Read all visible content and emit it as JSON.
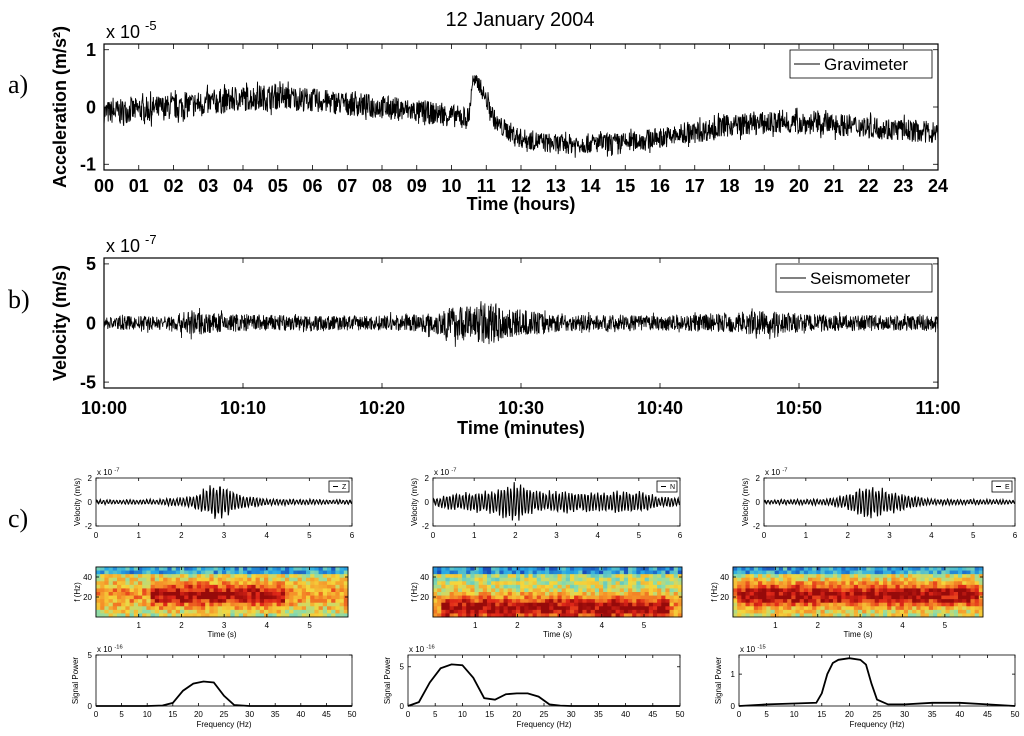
{
  "title": "12 January 2004",
  "panel_labels": [
    "a)",
    "b)",
    "c)"
  ],
  "chart_data": [
    {
      "type": "line",
      "id": "a",
      "ylabel": "Acceleration (m/s²)",
      "xlabel": "Time (hours)",
      "exponent_base": "x 10",
      "exponent": "-5",
      "legend": "Gravimeter",
      "legend_position": "top-right",
      "xlim": [
        0,
        24
      ],
      "ylim": [
        -1.1,
        1.1
      ],
      "yticks": [
        -1,
        0,
        1
      ],
      "ytick_labels": [
        "-1",
        "0",
        "1"
      ],
      "xticks": [
        0,
        1,
        2,
        3,
        4,
        5,
        6,
        7,
        8,
        9,
        10,
        11,
        12,
        13,
        14,
        15,
        16,
        17,
        18,
        19,
        20,
        21,
        22,
        23,
        24
      ],
      "xtick_labels": [
        "00",
        "01",
        "02",
        "03",
        "04",
        "05",
        "06",
        "07",
        "08",
        "09",
        "10",
        "11",
        "12",
        "13",
        "14",
        "15",
        "16",
        "17",
        "18",
        "19",
        "20",
        "21",
        "22",
        "23",
        "24"
      ],
      "envelope_x": [
        0,
        2,
        4,
        5,
        6,
        8,
        10,
        10.5,
        10.6,
        10.8,
        11.3,
        12,
        13,
        15,
        17,
        18,
        19,
        20,
        21,
        22,
        24
      ],
      "envelope_center": [
        -0.1,
        0.0,
        0.15,
        0.18,
        0.12,
        0.0,
        -0.15,
        -0.2,
        0.45,
        0.4,
        -0.3,
        -0.55,
        -0.65,
        -0.62,
        -0.45,
        -0.32,
        -0.28,
        -0.28,
        -0.3,
        -0.35,
        -0.45
      ],
      "envelope_amplitude": [
        0.3,
        0.32,
        0.32,
        0.32,
        0.3,
        0.3,
        0.28,
        0.28,
        0.2,
        0.2,
        0.25,
        0.25,
        0.25,
        0.25,
        0.27,
        0.28,
        0.28,
        0.28,
        0.28,
        0.28,
        0.28
      ]
    },
    {
      "type": "line",
      "id": "b",
      "ylabel": "Velocity (m/s)",
      "xlabel": "Time (minutes)",
      "exponent_base": "x 10",
      "exponent": "-7",
      "legend": "Seismometer",
      "legend_position": "top-right",
      "xlim": [
        0,
        60
      ],
      "ylim": [
        -5.5,
        5.5
      ],
      "yticks": [
        -5,
        0,
        5
      ],
      "ytick_labels": [
        "-5",
        "0",
        "5"
      ],
      "xticks": [
        0,
        10,
        20,
        30,
        40,
        50,
        60
      ],
      "xtick_labels": [
        "10:00",
        "10:10",
        "10:20",
        "10:30",
        "10:40",
        "10:50",
        "11:00"
      ],
      "envelope_x": [
        0,
        5,
        6,
        8,
        12,
        20,
        23,
        25,
        28,
        30,
        33,
        40,
        45,
        47,
        52,
        60
      ],
      "envelope_amplitude": [
        0.8,
        0.9,
        1.6,
        1.2,
        1.0,
        0.9,
        1.1,
        2.0,
        2.5,
        1.6,
        1.0,
        0.9,
        1.2,
        1.5,
        1.0,
        0.9
      ]
    },
    {
      "type": "line",
      "id": "c-velocity-Z",
      "ylabel": "Velocity (m/s)",
      "xlabel": "",
      "exponent_base": "x 10",
      "exponent": "-7",
      "legend": "Z",
      "xlim": [
        0,
        6
      ],
      "ylim": [
        -2,
        2
      ],
      "yticks": [
        -2,
        0,
        2
      ],
      "ytick_labels": [
        "-2",
        "0",
        "2"
      ],
      "xticks": [
        0,
        1,
        2,
        3,
        4,
        5,
        6
      ],
      "xtick_labels": [
        "0",
        "1",
        "2",
        "3",
        "4",
        "5",
        "6"
      ],
      "envelope_x": [
        0,
        1.5,
        2.2,
        2.8,
        3.4,
        4.0,
        6
      ],
      "envelope_amplitude": [
        0.2,
        0.25,
        0.5,
        1.8,
        0.7,
        0.3,
        0.2
      ]
    },
    {
      "type": "line",
      "id": "c-velocity-N",
      "ylabel": "Velocity (m/s)",
      "xlabel": "",
      "exponent_base": "x 10",
      "exponent": "-7",
      "legend": "N",
      "xlim": [
        0,
        6
      ],
      "ylim": [
        -2,
        2
      ],
      "yticks": [
        -2,
        0,
        2
      ],
      "ytick_labels": [
        "-2",
        "0",
        "2"
      ],
      "xticks": [
        0,
        1,
        2,
        3,
        4,
        5,
        6
      ],
      "xtick_labels": [
        "0",
        "1",
        "2",
        "3",
        "4",
        "5",
        "6"
      ],
      "envelope_x": [
        0,
        0.5,
        1.0,
        1.5,
        2.0,
        2.5,
        3.0,
        4.0,
        5.0,
        5.5,
        6
      ],
      "envelope_amplitude": [
        0.3,
        0.8,
        0.9,
        1.2,
        1.7,
        1.0,
        1.0,
        0.9,
        1.1,
        0.5,
        0.4
      ]
    },
    {
      "type": "line",
      "id": "c-velocity-E",
      "ylabel": "Velocity (m/s)",
      "xlabel": "",
      "exponent_base": "x 10",
      "exponent": "-7",
      "legend": "E",
      "xlim": [
        0,
        6
      ],
      "ylim": [
        -2,
        2
      ],
      "yticks": [
        -2,
        0,
        2
      ],
      "ytick_labels": [
        "-2",
        "0",
        "2"
      ],
      "xticks": [
        0,
        1,
        2,
        3,
        4,
        5,
        6
      ],
      "xtick_labels": [
        "0",
        "1",
        "2",
        "3",
        "4",
        "5",
        "6"
      ],
      "envelope_x": [
        0,
        1.5,
        2.0,
        2.4,
        3.0,
        3.5,
        4.0,
        6
      ],
      "envelope_amplitude": [
        0.2,
        0.3,
        0.7,
        1.5,
        1.1,
        0.6,
        0.3,
        0.2
      ]
    },
    {
      "type": "heatmap",
      "id": "c-spectrogram-Z",
      "ylabel": "f (Hz)",
      "xlabel": "Time (s)",
      "xlim": [
        0,
        5.9
      ],
      "ylim": [
        0,
        50
      ],
      "yticks": [
        20,
        40
      ],
      "ytick_labels": [
        "20",
        "40"
      ],
      "xticks": [
        1,
        2,
        3,
        4,
        5
      ],
      "xtick_labels": [
        "1",
        "2",
        "3",
        "4",
        "5"
      ],
      "peak_frequency": 22,
      "high_energy_intervals": [
        [
          1.3,
          4.4
        ]
      ]
    },
    {
      "type": "heatmap",
      "id": "c-spectrogram-N",
      "ylabel": "f (Hz)",
      "xlabel": "Time (s)",
      "xlim": [
        0,
        5.9
      ],
      "ylim": [
        0,
        50
      ],
      "yticks": [
        20,
        40
      ],
      "ytick_labels": [
        "20",
        "40"
      ],
      "xticks": [
        1,
        2,
        3,
        4,
        5
      ],
      "xtick_labels": [
        "1",
        "2",
        "3",
        "4",
        "5"
      ],
      "peak_frequency": 9,
      "high_energy_intervals": [
        [
          0.2,
          5.6
        ]
      ]
    },
    {
      "type": "heatmap",
      "id": "c-spectrogram-E",
      "ylabel": "f (Hz)",
      "xlabel": "Time (s)",
      "xlim": [
        0,
        5.9
      ],
      "ylim": [
        0,
        50
      ],
      "yticks": [
        20,
        40
      ],
      "ytick_labels": [
        "20",
        "40"
      ],
      "xticks": [
        1,
        2,
        3,
        4,
        5
      ],
      "xtick_labels": [
        "1",
        "2",
        "3",
        "4",
        "5"
      ],
      "peak_frequency": 22,
      "high_energy_intervals": [
        [
          0.1,
          5.8
        ]
      ]
    },
    {
      "type": "line",
      "id": "c-power-Z",
      "ylabel": "Signal Power",
      "xlabel": "Frequency (Hz)",
      "exponent_base": "x 10",
      "exponent": "-16",
      "xlim": [
        0,
        50
      ],
      "ylim": [
        0,
        5
      ],
      "yticks": [
        0,
        5
      ],
      "ytick_labels": [
        "0",
        "5"
      ],
      "xticks": [
        0,
        5,
        10,
        15,
        20,
        25,
        30,
        35,
        40,
        45,
        50
      ],
      "xtick_labels": [
        "0",
        "5",
        "10",
        "15",
        "20",
        "25",
        "30",
        "35",
        "40",
        "45",
        "50"
      ],
      "x": [
        0,
        5,
        10,
        13,
        15,
        17,
        19,
        21,
        23,
        25,
        27,
        30,
        35,
        40,
        45,
        50
      ],
      "y": [
        0,
        0,
        0,
        0.05,
        0.3,
        1.5,
        2.2,
        2.4,
        2.3,
        1.0,
        0.1,
        0,
        0,
        0,
        0,
        0
      ]
    },
    {
      "type": "line",
      "id": "c-power-N",
      "ylabel": "Signal Power",
      "xlabel": "Frequency (Hz)",
      "exponent_base": "x 10",
      "exponent": "-16",
      "xlim": [
        0,
        50
      ],
      "ylim": [
        0,
        6.5
      ],
      "yticks": [
        0,
        5
      ],
      "ytick_labels": [
        "0",
        "5"
      ],
      "xticks": [
        0,
        5,
        10,
        15,
        20,
        25,
        30,
        35,
        40,
        45,
        50
      ],
      "xtick_labels": [
        "0",
        "5",
        "10",
        "15",
        "20",
        "25",
        "30",
        "35",
        "40",
        "45",
        "50"
      ],
      "x": [
        0,
        2,
        4,
        6,
        8,
        10,
        12,
        14,
        16,
        18,
        20,
        22,
        24,
        26,
        28,
        30,
        35,
        40,
        45,
        50
      ],
      "y": [
        0,
        0.5,
        3.0,
        4.8,
        5.3,
        5.2,
        3.6,
        1.0,
        0.8,
        1.5,
        1.6,
        1.6,
        1.2,
        0.2,
        0.05,
        0,
        0,
        0,
        0,
        0
      ]
    },
    {
      "type": "line",
      "id": "c-power-E",
      "ylabel": "Signal Power",
      "xlabel": "Frequency (Hz)",
      "exponent_base": "x 10",
      "exponent": "-15",
      "xlim": [
        0,
        50
      ],
      "ylim": [
        0,
        1.6
      ],
      "yticks": [
        0,
        1
      ],
      "ytick_labels": [
        "0",
        "1"
      ],
      "xticks": [
        0,
        5,
        10,
        15,
        20,
        25,
        30,
        35,
        40,
        45,
        50
      ],
      "xtick_labels": [
        "0",
        "5",
        "10",
        "15",
        "20",
        "25",
        "30",
        "35",
        "40",
        "45",
        "50"
      ],
      "x": [
        0,
        5,
        10,
        14,
        15,
        16,
        17,
        18,
        20,
        22,
        23,
        24,
        25,
        27,
        30,
        35,
        40,
        45,
        50
      ],
      "y": [
        0,
        0.05,
        0.08,
        0.1,
        0.4,
        1.0,
        1.35,
        1.45,
        1.5,
        1.45,
        1.3,
        0.7,
        0.2,
        0.05,
        0.05,
        0.1,
        0.1,
        0.05,
        0
      ]
    }
  ]
}
